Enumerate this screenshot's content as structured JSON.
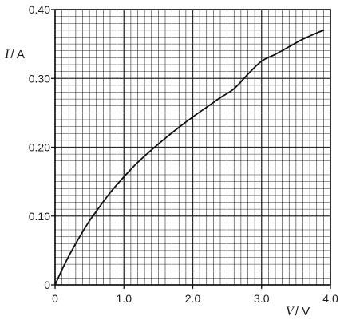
{
  "chart_data": {
    "type": "line",
    "title": "",
    "xlabel": {
      "symbol": "V",
      "unit": "/ V"
    },
    "ylabel": {
      "symbol": "I",
      "unit": "/ A"
    },
    "xlim": [
      0,
      4.0
    ],
    "ylim": [
      0,
      0.4
    ],
    "x_ticks": [
      {
        "value": 0,
        "label": "0"
      },
      {
        "value": 1.0,
        "label": "1.0"
      },
      {
        "value": 2.0,
        "label": "2.0"
      },
      {
        "value": 3.0,
        "label": "3.0"
      },
      {
        "value": 4.0,
        "label": "4.0"
      }
    ],
    "y_ticks": [
      {
        "value": 0,
        "label": "0"
      },
      {
        "value": 0.1,
        "label": "0.10"
      },
      {
        "value": 0.2,
        "label": "0.20"
      },
      {
        "value": 0.3,
        "label": "0.30"
      },
      {
        "value": 0.4,
        "label": "0.40"
      }
    ],
    "grid": {
      "on": true,
      "minor_per_major_x": 10,
      "minor_per_major_y": 10
    },
    "series": [
      {
        "color": "#111111",
        "x": [
          0,
          0.1,
          0.2,
          0.3,
          0.4,
          0.5,
          0.6,
          0.8,
          1.0,
          1.2,
          1.4,
          1.6,
          1.8,
          2.0,
          2.2,
          2.4,
          2.6,
          2.8,
          3.0,
          3.2,
          3.4,
          3.6,
          3.8,
          3.9
        ],
        "y": [
          0,
          0.022,
          0.042,
          0.06,
          0.077,
          0.093,
          0.107,
          0.134,
          0.157,
          0.178,
          0.196,
          0.213,
          0.229,
          0.244,
          0.258,
          0.272,
          0.285,
          0.306,
          0.325,
          0.335,
          0.346,
          0.357,
          0.366,
          0.37
        ]
      }
    ]
  }
}
